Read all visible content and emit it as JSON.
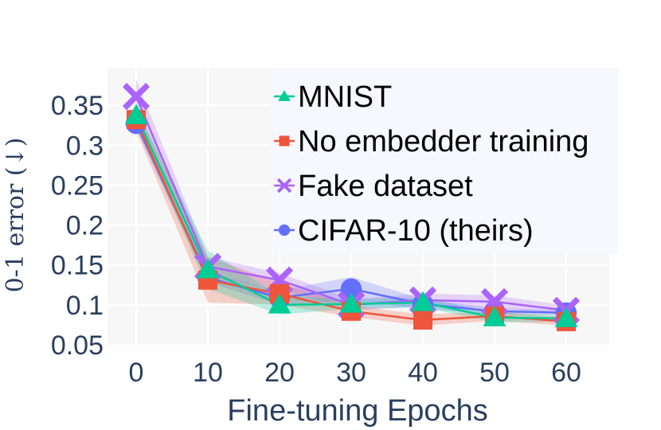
{
  "chart_data": {
    "type": "line",
    "title": "",
    "xlabel": "Fine-tuning Epochs",
    "ylabel": "0-1 error (↓)",
    "x": [
      0,
      10,
      20,
      30,
      40,
      50,
      60
    ],
    "xticks": [
      0,
      10,
      20,
      30,
      40,
      50,
      60
    ],
    "xtick_labels": [
      "0",
      "10",
      "20",
      "30",
      "40",
      "50",
      "60"
    ],
    "yticks": [
      0.05,
      0.1,
      0.15,
      0.2,
      0.25,
      0.3,
      0.35
    ],
    "ytick_labels": [
      "0.05",
      "0.1",
      "0.15",
      "0.2",
      "0.25",
      "0.3",
      "0.35"
    ],
    "xlim": [
      -4,
      66
    ],
    "ylim": [
      0.048,
      0.397
    ],
    "grid": true,
    "legend_position": "top-right",
    "series": [
      {
        "name": "CIFAR-10 (theirs)",
        "color": "#636efa",
        "marker": "circle",
        "values": [
          0.327,
          0.134,
          0.109,
          0.12,
          0.101,
          0.092,
          0.09
        ],
        "band_low": [
          0.32,
          0.128,
          0.1,
          0.105,
          0.095,
          0.088,
          0.087
        ],
        "band_high": [
          0.334,
          0.14,
          0.118,
          0.135,
          0.107,
          0.096,
          0.093
        ]
      },
      {
        "name": "Fake dataset",
        "color": "#ab63fa",
        "marker": "x",
        "values": [
          0.361,
          0.148,
          0.131,
          0.1,
          0.106,
          0.104,
          0.093
        ],
        "band_low": [
          0.34,
          0.135,
          0.12,
          0.093,
          0.098,
          0.096,
          0.087
        ],
        "band_high": [
          0.382,
          0.16,
          0.14,
          0.107,
          0.114,
          0.112,
          0.099
        ]
      },
      {
        "name": "No embedder training",
        "color": "#ef553b",
        "marker": "square",
        "values": [
          0.332,
          0.131,
          0.114,
          0.092,
          0.081,
          0.086,
          0.079
        ],
        "band_low": [
          0.318,
          0.103,
          0.1,
          0.085,
          0.074,
          0.08,
          0.074
        ],
        "band_high": [
          0.346,
          0.16,
          0.128,
          0.099,
          0.088,
          0.092,
          0.084
        ]
      },
      {
        "name": "MNIST",
        "color": "#00cc96",
        "marker": "triangle-up",
        "values": [
          0.337,
          0.144,
          0.1,
          0.101,
          0.103,
          0.084,
          0.083
        ],
        "band_low": [
          0.327,
          0.12,
          0.088,
          0.095,
          0.097,
          0.078,
          0.079
        ],
        "band_high": [
          0.347,
          0.168,
          0.112,
          0.107,
          0.109,
          0.09,
          0.087
        ]
      }
    ],
    "legend_order": [
      "MNIST",
      "No embedder training",
      "Fake dataset",
      "CIFAR-10 (theirs)"
    ]
  }
}
